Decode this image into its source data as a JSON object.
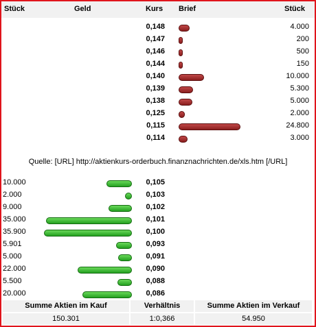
{
  "header": {
    "col_stueck_left": "Stück",
    "col_geld": "Geld",
    "col_kurs": "Kurs",
    "col_brief": "Brief",
    "col_stueck_right": "Stück"
  },
  "brief": [
    {
      "kurs": "0,148",
      "stueck": "4.000",
      "volume": 4000
    },
    {
      "kurs": "0,147",
      "stueck": "200",
      "volume": 200
    },
    {
      "kurs": "0,146",
      "stueck": "500",
      "volume": 500
    },
    {
      "kurs": "0,144",
      "stueck": "150",
      "volume": 150
    },
    {
      "kurs": "0,140",
      "stueck": "10.000",
      "volume": 10000
    },
    {
      "kurs": "0,139",
      "stueck": "5.300",
      "volume": 5300
    },
    {
      "kurs": "0,138",
      "stueck": "5.000",
      "volume": 5000
    },
    {
      "kurs": "0,125",
      "stueck": "2.000",
      "volume": 2000
    },
    {
      "kurs": "0,115",
      "stueck": "24.800",
      "volume": 24800
    },
    {
      "kurs": "0,114",
      "stueck": "3.000",
      "volume": 3000
    }
  ],
  "source_text": "Quelle: [URL] http://aktienkurs-orderbuch.finanznachrichten.de/xls.htm [/URL]",
  "geld": [
    {
      "stueck": "10.000",
      "kurs": "0,105",
      "volume": 10000
    },
    {
      "stueck": "2.000",
      "kurs": "0,103",
      "volume": 2000
    },
    {
      "stueck": "9.000",
      "kurs": "0,102",
      "volume": 9000
    },
    {
      "stueck": "35.000",
      "kurs": "0,101",
      "volume": 35000
    },
    {
      "stueck": "35.900",
      "kurs": "0,100",
      "volume": 35900
    },
    {
      "stueck": "5.901",
      "kurs": "0,093",
      "volume": 5901
    },
    {
      "stueck": "5.000",
      "kurs": "0,091",
      "volume": 5000
    },
    {
      "stueck": "22.000",
      "kurs": "0,090",
      "volume": 22000
    },
    {
      "stueck": "5.500",
      "kurs": "0,088",
      "volume": 5500
    },
    {
      "stueck": "20.000",
      "kurs": "0,086",
      "volume": 20000
    }
  ],
  "footer": {
    "kauf_label": "Summe Aktien im Kauf",
    "kauf_value": "150.301",
    "ratio_label": "Verhältnis",
    "ratio_value": "1:0,366",
    "verkauf_label": "Summe Aktien im Verkauf",
    "verkauf_value": "54.950"
  },
  "colors": {
    "ask_bar": "#9b2b2b",
    "bid_bar": "#3cb832",
    "frame": "#e0141c",
    "header_bg": "#f1f1f1"
  }
}
